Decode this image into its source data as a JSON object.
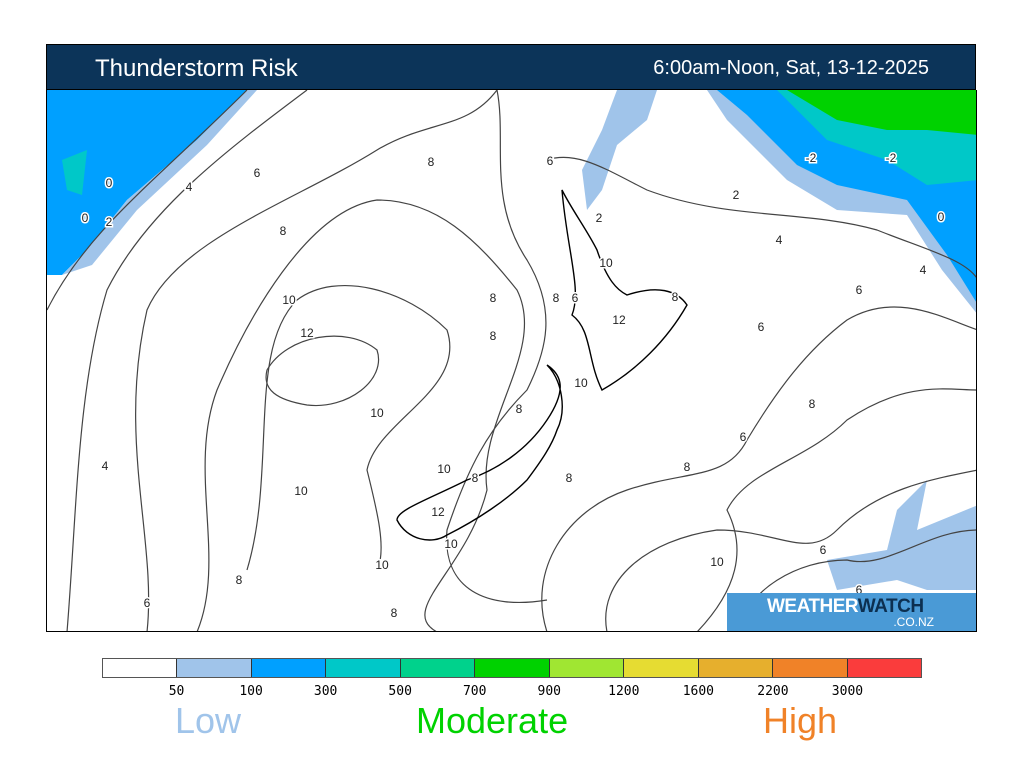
{
  "header": {
    "title": "Thunderstorm Risk",
    "period": "6:00am-Noon, Sat, 13-12-2025"
  },
  "logo": {
    "part1": "WEATHER",
    "part2": "WATCH",
    "domain": ".CO.NZ"
  },
  "legend": {
    "colors": [
      "#ffffff",
      "#a0c4ea",
      "#00a0ff",
      "#00c8c8",
      "#00d28c",
      "#00d200",
      "#a0e632",
      "#e6dc32",
      "#e6af2d",
      "#f08228",
      "#fa3c3c"
    ],
    "ticks": [
      "50",
      "100",
      "300",
      "500",
      "700",
      "900",
      "1200",
      "1600",
      "2200",
      "3000"
    ],
    "categories": [
      {
        "label": "Low",
        "color": "#a0c4ea"
      },
      {
        "label": "Moderate",
        "color": "#00d200"
      },
      {
        "label": "High",
        "color": "#f08228"
      }
    ]
  },
  "map": {
    "contour_labels": [
      "8",
      "6",
      "4",
      "0",
      "0",
      "2",
      "8",
      "10",
      "12",
      "10",
      "8",
      "8",
      "6",
      "2",
      "2",
      "4",
      "4",
      "6",
      "6",
      "8",
      "12",
      "10",
      "8",
      "6",
      "10",
      "8",
      "10",
      "8",
      "12",
      "10",
      "8",
      "8",
      "6",
      "8",
      "10",
      "6",
      "6",
      "10",
      "10",
      "8",
      "6",
      "4",
      "8",
      "-2",
      "-2",
      "0"
    ]
  }
}
